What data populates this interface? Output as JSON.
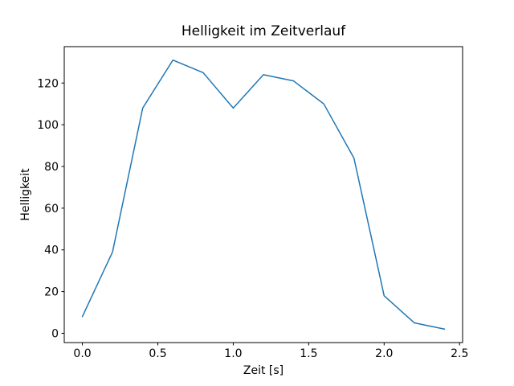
{
  "figure": {
    "background": "#ffffff",
    "axis_color": "#000000",
    "text_color": "#000000"
  },
  "chart_data": {
    "type": "line",
    "title": "Helligkeit im Zeitverlauf",
    "xlabel": "Zeit [s]",
    "ylabel": "Helligkeit",
    "x": [
      0.0,
      0.2,
      0.4,
      0.6,
      0.8,
      1.0,
      1.2,
      1.4,
      1.6,
      1.8,
      2.0,
      2.2,
      2.4
    ],
    "y": [
      8,
      39,
      108,
      131,
      125,
      108,
      124,
      121,
      110,
      84,
      18,
      5,
      2
    ],
    "series": [
      {
        "name": "Helligkeit",
        "values": [
          8,
          39,
          108,
          131,
          125,
          108,
          124,
          121,
          110,
          84,
          18,
          5,
          2
        ]
      }
    ],
    "xlim": [
      -0.12,
      2.52
    ],
    "ylim": [
      -4.45,
      137.45
    ],
    "xticks": [
      0.0,
      0.5,
      1.0,
      1.5,
      2.0,
      2.5
    ],
    "xtick_labels": [
      "0.0",
      "0.5",
      "1.0",
      "1.5",
      "2.0",
      "2.5"
    ],
    "yticks": [
      0,
      20,
      40,
      60,
      80,
      100,
      120
    ],
    "ytick_labels": [
      "0",
      "20",
      "40",
      "60",
      "80",
      "100",
      "120"
    ],
    "line_color": "#1f77b4",
    "line_width": 1.5,
    "grid": false,
    "legend_position": "none",
    "marker": "none"
  }
}
